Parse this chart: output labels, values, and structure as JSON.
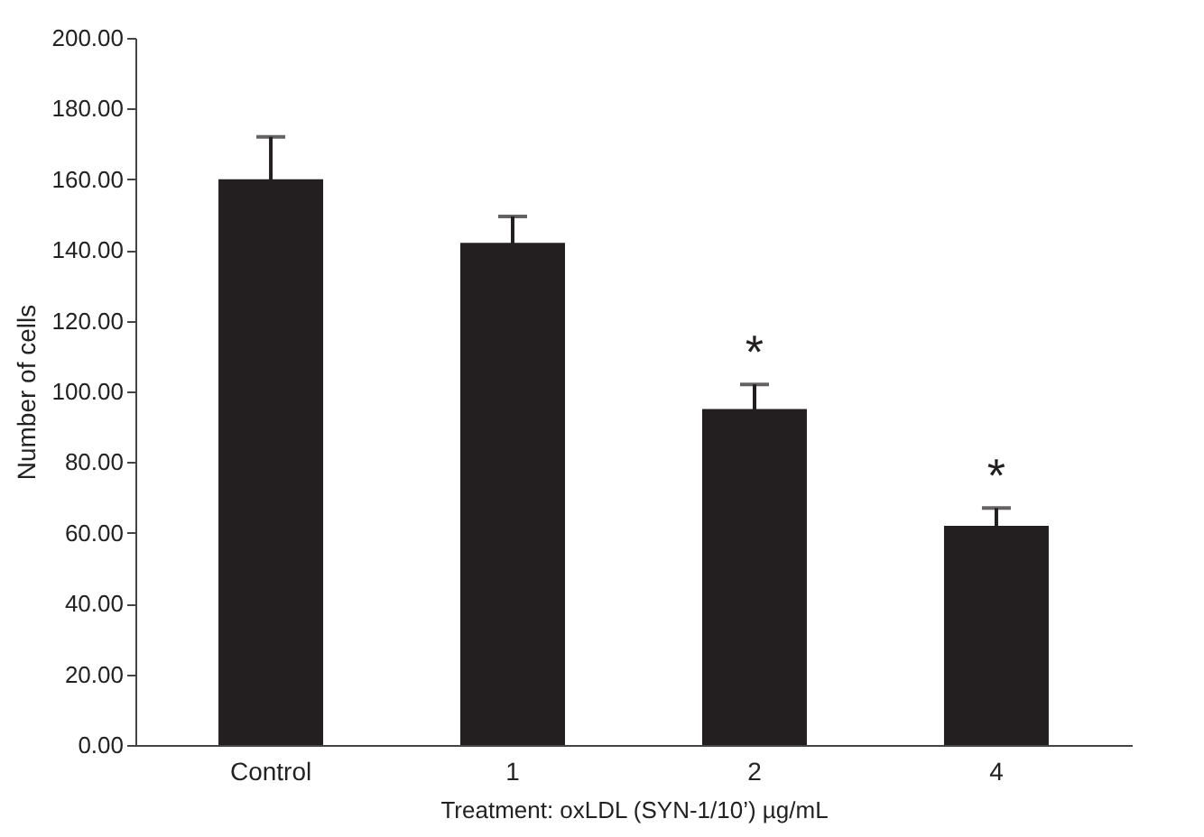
{
  "chart_data": {
    "type": "bar",
    "xlabel": "Treatment:  oxLDL  (SYN-1/10’)  µg/mL",
    "ylabel": "Number  of  cells",
    "categories": [
      "Control",
      "1",
      "2",
      "4"
    ],
    "values": [
      160,
      142,
      95,
      62
    ],
    "errors": [
      12,
      7.5,
      7,
      5
    ],
    "color": "#231f20",
    "ylim": [
      0,
      200
    ],
    "yticks": [
      {
        "value": 0,
        "label": "0.00"
      },
      {
        "value": 20,
        "label": "20.00"
      },
      {
        "value": 40,
        "label": "40.00"
      },
      {
        "value": 60,
        "label": "60.00"
      },
      {
        "value": 80,
        "label": "80.00"
      },
      {
        "value": 100,
        "label": "100.00"
      },
      {
        "value": 120,
        "label": "120.00"
      },
      {
        "value": 140,
        "label": "140.00"
      },
      {
        "value": 160,
        "label": "160.00"
      },
      {
        "value": 180,
        "label": "180.00"
      },
      {
        "value": 200,
        "label": "200.00"
      }
    ],
    "annotations": [
      {
        "text": "*",
        "x": "2",
        "y": 102
      },
      {
        "text": "*",
        "x": "4",
        "y": 67
      }
    ],
    "grid": false
  }
}
